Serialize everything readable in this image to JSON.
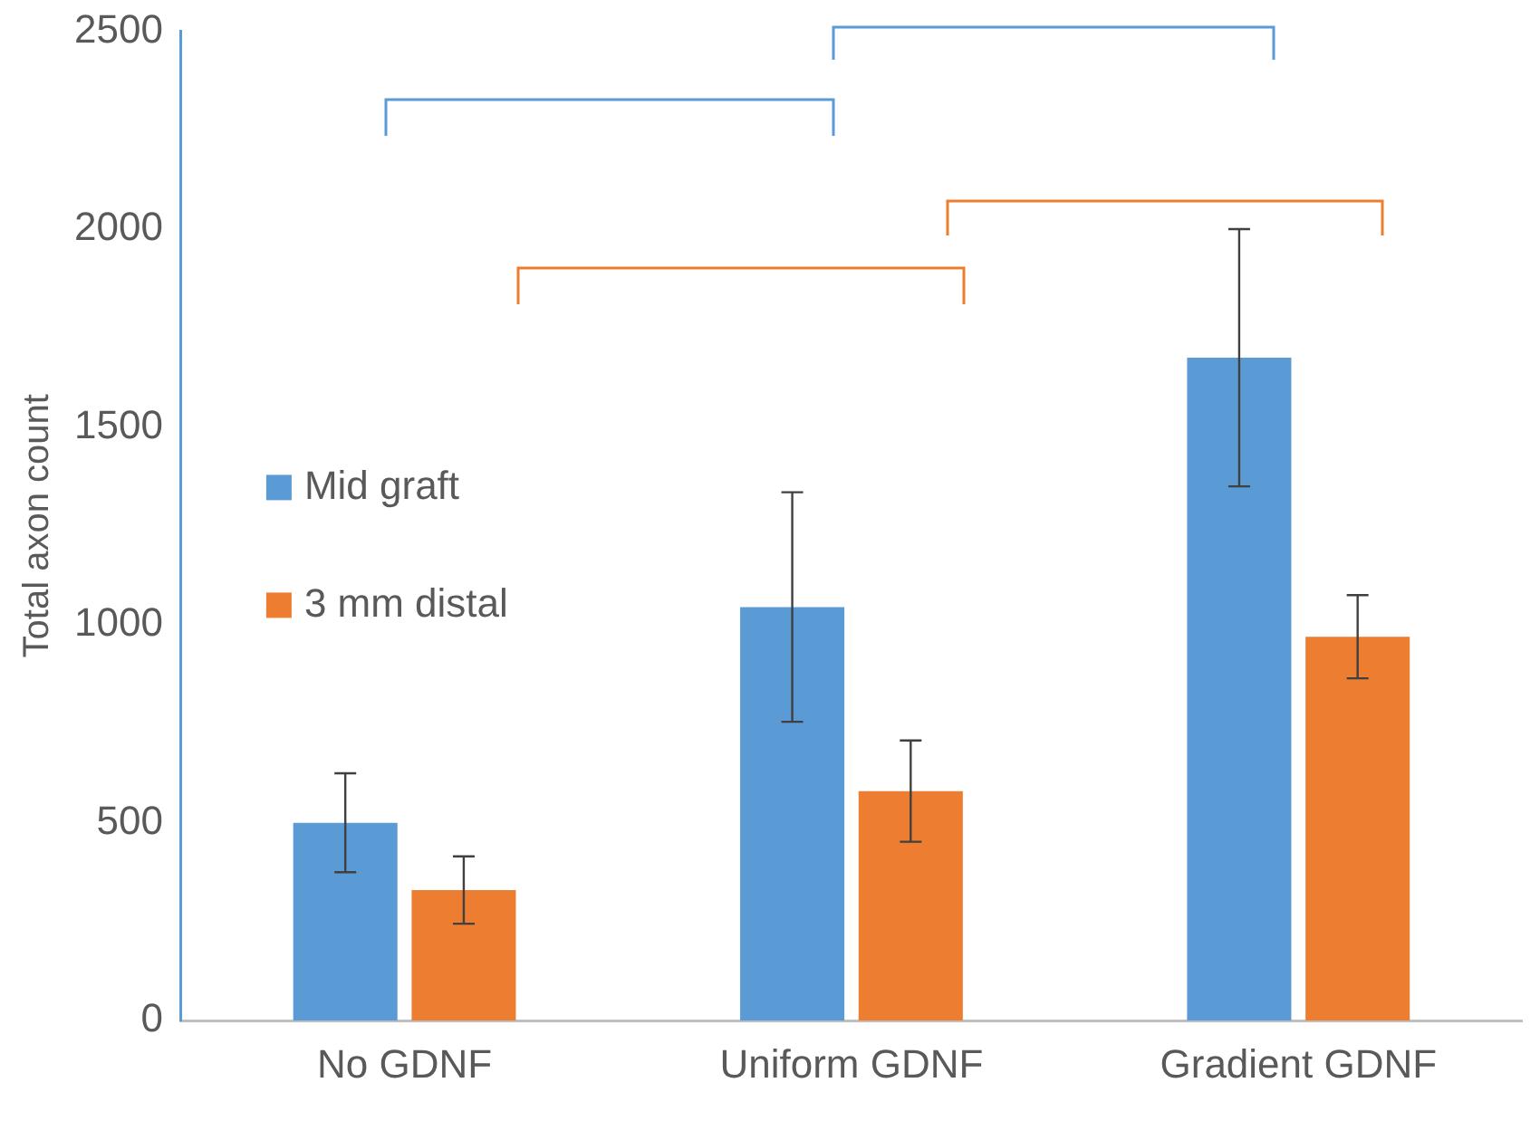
{
  "chart_data": {
    "type": "bar",
    "ylabel": "Total axon count",
    "categories": [
      "No GDNF",
      "Uniform GDNF",
      "Gradient GDNF"
    ],
    "series": [
      {
        "name": "Mid graft",
        "color": "#5b9bd5",
        "values": [
          500,
          1045,
          1675
        ],
        "errors": [
          125,
          290,
          325
        ]
      },
      {
        "name": "3 mm distal",
        "color": "#ed7d31",
        "values": [
          330,
          580,
          970
        ],
        "errors": [
          85,
          128,
          105
        ]
      }
    ],
    "ylim": [
      0,
      2500
    ],
    "yticks": [
      0,
      500,
      1000,
      1500,
      2000,
      2500
    ],
    "grid": false,
    "legend": "left"
  }
}
